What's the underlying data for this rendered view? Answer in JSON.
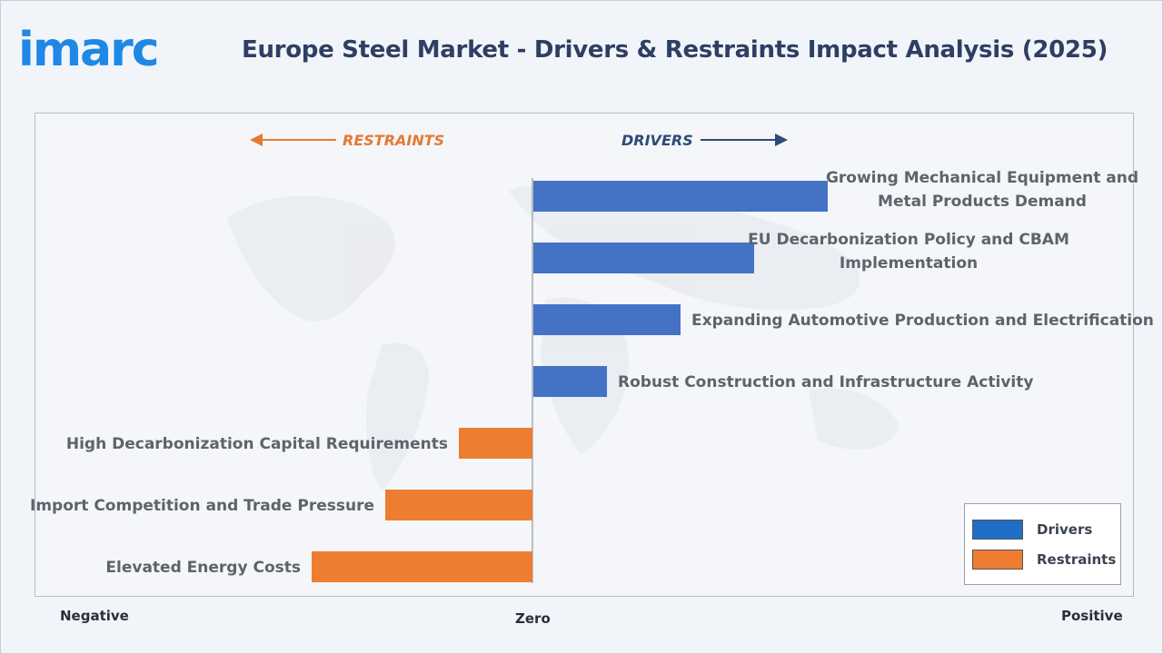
{
  "brand": {
    "logo_text": "imarc",
    "color": "#1e88e5"
  },
  "header": {
    "title": "Europe Steel Market - Drivers & Restraints Impact Analysis (2025)"
  },
  "axis": {
    "left_label": "Negative",
    "center_label": "Zero",
    "right_label": "Positive"
  },
  "directions": {
    "restraints": "RESTRAINTS",
    "drivers": "DRIVERS"
  },
  "legend": [
    {
      "label": "Drivers",
      "color": "#1f6fc6"
    },
    {
      "label": "Restraints",
      "color": "#ee7d31"
    }
  ],
  "colors": {
    "driver_bar": "#4472c4",
    "restraint_bar": "#ed7d31",
    "restraint_text": "#e47a34",
    "driver_text": "#2f4a75",
    "label_text": "#5e636b"
  },
  "chart_data": {
    "type": "bar",
    "orientation": "horizontal",
    "title": "Europe Steel Market - Drivers & Restraints Impact Analysis (2025)",
    "xlabel": "",
    "ylabel": "",
    "xlim": [
      -5,
      5
    ],
    "series": [
      {
        "name": "Drivers",
        "color": "#4472c4"
      },
      {
        "name": "Restraints",
        "color": "#ed7d31"
      }
    ],
    "bars": [
      {
        "label_lines": [
          "Growing Mechanical Equipment and",
          "Metal Products Demand"
        ],
        "value": 4,
        "series": "Drivers"
      },
      {
        "label_lines": [
          "EU Decarbonization Policy and CBAM",
          "Implementation"
        ],
        "value": 3,
        "series": "Drivers"
      },
      {
        "label_lines": [
          "Expanding Automotive Production and Electrification"
        ],
        "value": 2,
        "series": "Drivers"
      },
      {
        "label_lines": [
          "Robust Construction and Infrastructure Activity"
        ],
        "value": 1,
        "series": "Drivers"
      },
      {
        "label_lines": [
          "High Decarbonization Capital Requirements"
        ],
        "value": -1,
        "series": "Restraints"
      },
      {
        "label_lines": [
          "Import Competition and Trade Pressure"
        ],
        "value": -2,
        "series": "Restraints"
      },
      {
        "label_lines": [
          "Elevated Energy Costs"
        ],
        "value": -3,
        "series": "Restraints"
      }
    ],
    "legend_position": "bottom-right",
    "grid": false
  }
}
